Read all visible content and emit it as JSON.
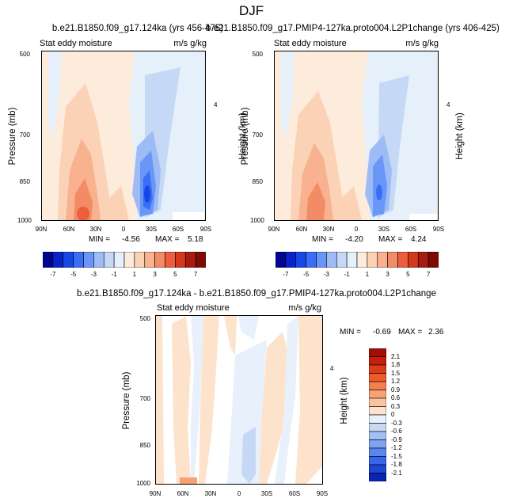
{
  "figure": {
    "title": "DJF",
    "left_title": "b.e21.B1850.f09_g17.124ka (yrs 456-475)",
    "right_title": "b.e21.B1850.f09_g17.PMIP4-127ka.proto004.L2P1change (yrs 406-425)",
    "bottom_title": "b.e21.B1850.f09_g17.124ka - b.e21.B1850.f09_g17.PMIP4-127ka.proto004.L2P1change"
  },
  "chart_data": [
    {
      "type": "heatmap",
      "panel": "left",
      "variable": "Stat eddy moisture",
      "units": "m/s g/kg",
      "xlabel": "",
      "ylabel": "Pressure (mb)",
      "y2label": "Height (km)",
      "x_ticks": [
        "90N",
        "60N",
        "30N",
        "0",
        "30S",
        "60S",
        "90S"
      ],
      "y_ticks": [
        "500",
        "700",
        "850",
        "1000"
      ],
      "y2_ticks": [
        "4"
      ],
      "min_label": "MIN =",
      "min": "-4.56",
      "max_label": "MAX =",
      "max": "5.18",
      "field_extrema": {
        "max_near": "50N 1000mb",
        "min_near": "25S 870mb"
      }
    },
    {
      "type": "heatmap",
      "panel": "right",
      "variable": "Stat eddy moisture",
      "units": "m/s g/kg",
      "xlabel": "",
      "ylabel": "Pressure (mb)",
      "y2label": "Height (km)",
      "x_ticks": [
        "90N",
        "60N",
        "30N",
        "0",
        "30S",
        "60S",
        "90S"
      ],
      "y_ticks": [
        "500",
        "700",
        "850",
        "1000"
      ],
      "y2_ticks": [
        "4"
      ],
      "min_label": "MIN =",
      "min": "-4.20",
      "max_label": "MAX =",
      "max": "4.24"
    },
    {
      "type": "heatmap",
      "panel": "bottom",
      "variable": "Stat eddy moisture",
      "units": "m/s g/kg",
      "xlabel": "",
      "ylabel": "Pressure (mb)",
      "y2label": "Height (km)",
      "x_ticks": [
        "90N",
        "60N",
        "30N",
        "0",
        "30S",
        "60S",
        "90S"
      ],
      "y_ticks": [
        "500",
        "700",
        "850",
        "1000"
      ],
      "y2_ticks": [
        "4"
      ],
      "min_label": "MIN =",
      "min": "-0.69",
      "max_label": "MAX =",
      "max": "2.36"
    }
  ],
  "colorbar_top": {
    "labels": [
      "-7",
      "-5",
      "-3",
      "-1",
      "1",
      "3",
      "5",
      "7"
    ],
    "colors": [
      "#00068f",
      "#0a23c8",
      "#1747e6",
      "#3a6ef5",
      "#6a96f7",
      "#9dbcf5",
      "#c5d8f5",
      "#e6f0fb",
      "#fdebdb",
      "#fbd2b6",
      "#f8b28f",
      "#f38b66",
      "#eb5f3f",
      "#d4381f",
      "#a81c10",
      "#7e0a05"
    ]
  },
  "colorbar_bottom": {
    "labels": [
      "2.1",
      "1.8",
      "1.5",
      "1.2",
      "0.9",
      "0.6",
      "0.3",
      "0",
      "-0.3",
      "-0.6",
      "-0.9",
      "-1.2",
      "-1.5",
      "-1.8",
      "-2.1"
    ],
    "colors": [
      "#a10e06",
      "#c3200c",
      "#dd3a17",
      "#ef5a2a",
      "#f57e4c",
      "#f8a274",
      "#fbc4a0",
      "#fde2cc",
      "#e8f0fb",
      "#c7d8f6",
      "#a4bff3",
      "#7ea3f0",
      "#5a86ee",
      "#3566eb",
      "#1d45d8",
      "#0c22b0"
    ]
  }
}
